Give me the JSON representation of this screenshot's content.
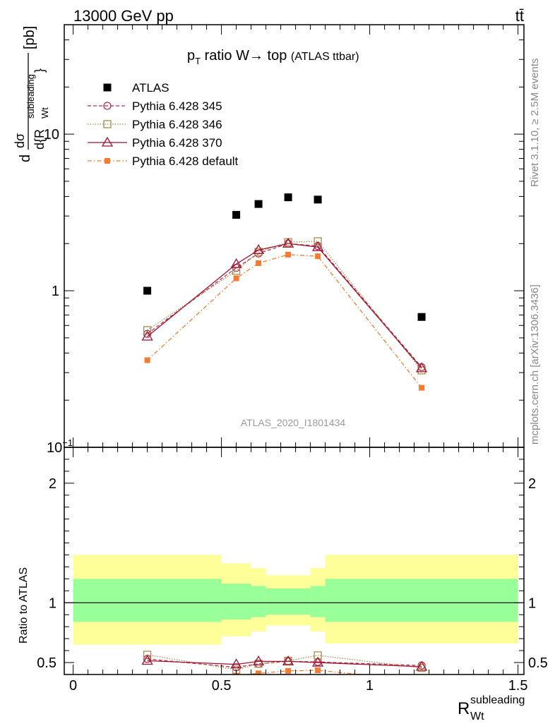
{
  "header": {
    "energy_label": "13000 GeV pp",
    "process_label": "tt̄"
  },
  "side_labels": {
    "rivet": "Rivet 3.1.10, ≥ 2.5M events",
    "mcplots": "mcplots.cern.ch [arXiv:1306.3436]"
  },
  "chart_data": [
    {
      "type": "scatter",
      "title_main": "p",
      "title_sub": "T",
      "title_rest": " ratio W→ top",
      "title_small": "(ATLAS ttbar)",
      "watermark": "ATLAS_2020_I1801434",
      "ylabel": "dσ/d{R_Wt^subleading} [pb]",
      "ylabel_text": "[pb]",
      "yscale": "log",
      "ylim": [
        0.1,
        50
      ],
      "xlim": [
        -0.03,
        1.52
      ],
      "y_tick_labels": [
        {
          "v": 0.1,
          "base": "10",
          "exp": "−1"
        },
        {
          "v": 1,
          "base": "1",
          "exp": ""
        },
        {
          "v": 10,
          "base": "10",
          "exp": ""
        }
      ],
      "legend_position": "top-left",
      "series": [
        {
          "name": "ATLAS",
          "color": "#000000",
          "marker": "square",
          "x": [
            0.25,
            0.55,
            0.625,
            0.725,
            0.825,
            1.175
          ],
          "y": [
            1.0,
            3.05,
            3.58,
            3.95,
            3.82,
            0.68
          ]
        },
        {
          "name": "Pythia 6.428 345",
          "color": "#b2324c",
          "marker": "circle",
          "dash": "5,3",
          "x": [
            0.25,
            0.55,
            0.625,
            0.725,
            0.825,
            1.175
          ],
          "y": [
            0.53,
            1.4,
            1.73,
            2.0,
            1.93,
            0.325
          ]
        },
        {
          "name": "Pythia 6.428 346",
          "color": "#a98b45",
          "marker": "square-open",
          "dash": "1.5,2",
          "x": [
            0.25,
            0.55,
            0.625,
            0.725,
            0.825,
            1.175
          ],
          "y": [
            0.56,
            1.34,
            1.77,
            2.04,
            2.07,
            0.31
          ]
        },
        {
          "name": "Pythia 6.428 370",
          "color": "#9c1334",
          "marker": "triangle",
          "dash": "",
          "x": [
            0.25,
            0.55,
            0.625,
            0.725,
            0.825,
            1.175
          ],
          "y": [
            0.51,
            1.48,
            1.82,
            2.0,
            1.9,
            0.32
          ]
        },
        {
          "name": "Pythia 6.428 default",
          "color": "#f47c30",
          "marker": "filled-square-small",
          "dash": "6,3,1.5,3",
          "x": [
            0.25,
            0.55,
            0.625,
            0.725,
            0.825,
            1.175
          ],
          "y": [
            0.36,
            1.2,
            1.5,
            1.7,
            1.66,
            0.24
          ]
        }
      ]
    },
    {
      "type": "scatter",
      "ylabel": "Ratio to ATLAS",
      "xlabel": "R_Wt^subleading",
      "xlabel_main": "R",
      "xlabel_sub": "Wt",
      "xlabel_sup": "subleading",
      "xlim": [
        -0.03,
        1.52
      ],
      "ylim": [
        0.4,
        2.3
      ],
      "x_tick_labels": [
        "0",
        "0.5",
        "1",
        "1.5"
      ],
      "y_tick_labels": [
        "0.5",
        "1",
        "2"
      ],
      "bands": {
        "edges": [
          0.0,
          0.5,
          0.6,
          0.65,
          0.8,
          0.85,
          1.5
        ],
        "yellow_lo": [
          0.65,
          0.72,
          0.76,
          0.81,
          0.76,
          0.66
        ],
        "yellow_hi": [
          1.4,
          1.33,
          1.29,
          1.23,
          1.29,
          1.4
        ],
        "green_lo": [
          0.84,
          0.86,
          0.88,
          0.9,
          0.88,
          0.84
        ],
        "green_hi": [
          1.2,
          1.16,
          1.14,
          1.12,
          1.14,
          1.2
        ],
        "yellow_color": "#ffff99",
        "green_color": "#99ff99"
      },
      "series": [
        {
          "name": "Pythia 6.428 345",
          "x": [
            0.25,
            0.55,
            0.625,
            0.725,
            0.825,
            1.175
          ],
          "y": [
            0.53,
            0.46,
            0.49,
            0.51,
            0.505,
            0.475
          ]
        },
        {
          "name": "Pythia 6.428 346",
          "x": [
            0.25,
            0.55,
            0.625,
            0.725,
            0.825,
            1.175
          ],
          "y": [
            0.565,
            0.44,
            0.49,
            0.515,
            0.56,
            0.455
          ]
        },
        {
          "name": "Pythia 6.428 370",
          "x": [
            0.25,
            0.55,
            0.625,
            0.725,
            0.825,
            1.175
          ],
          "y": [
            0.515,
            0.485,
            0.51,
            0.51,
            0.5,
            0.465
          ]
        },
        {
          "name": "Pythia 6.428 default",
          "x": [
            0.25,
            0.55,
            0.625,
            0.725,
            0.825,
            1.175
          ],
          "y": [
            0.36,
            0.39,
            0.41,
            0.43,
            0.435,
            0.35
          ]
        }
      ]
    }
  ]
}
